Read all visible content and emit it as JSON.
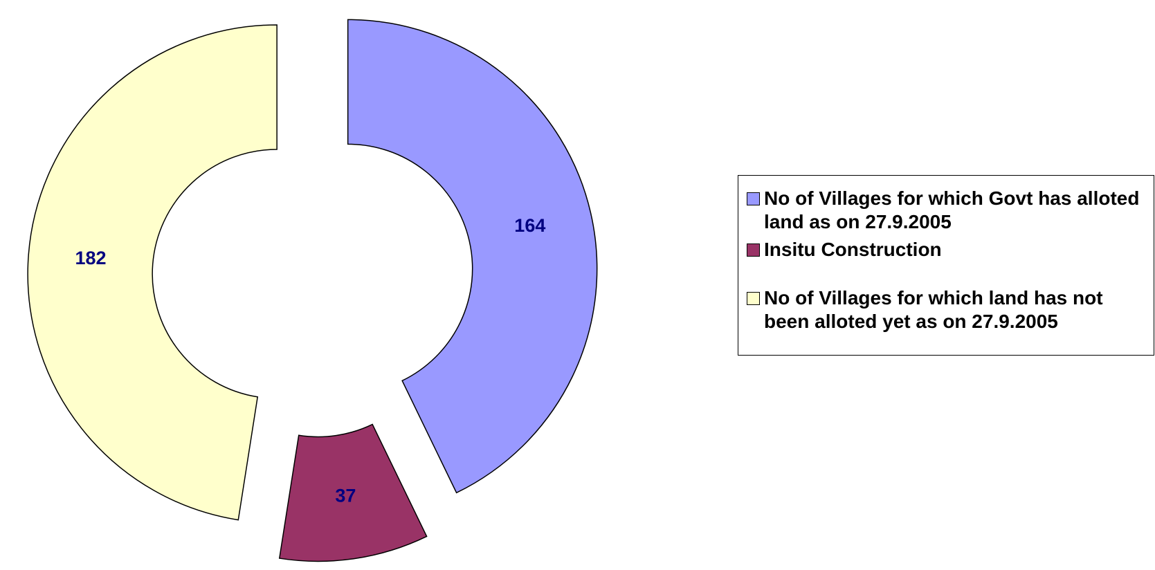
{
  "chart_data": {
    "type": "donut",
    "categories": [
      "No of Villages for which Govt has alloted land as on 27.9.2005",
      "Insitu Construction",
      "No of Villages for which land has not been alloted yet as on 27.9.2005"
    ],
    "values": [
      164,
      37,
      182
    ],
    "colors": [
      "#9999ff",
      "#993366",
      "#ffffcc"
    ],
    "legend": "right"
  }
}
